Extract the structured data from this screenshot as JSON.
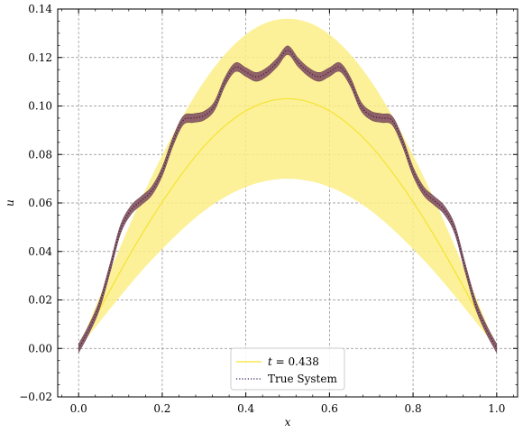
{
  "chart_data": {
    "type": "line",
    "title": "",
    "xlabel": "x",
    "ylabel": "u",
    "xlim": [
      -0.05,
      1.05
    ],
    "ylim": [
      -0.02,
      0.14
    ],
    "xticks": [
      "0.0",
      "0.2",
      "0.4",
      "0.6",
      "0.8",
      "1.0"
    ],
    "yticks": [
      "−0.02",
      "0.00",
      "0.02",
      "0.04",
      "0.06",
      "0.08",
      "0.10",
      "0.12",
      "0.14"
    ],
    "grid": true,
    "grid_style": "dashed",
    "legend_position": "bottom-center",
    "colors": {
      "prediction_line": "#f5e332",
      "prediction_band": "#fbee86",
      "true_line": "#3b1a4d",
      "true_band": "#8a5a65"
    },
    "series": [
      {
        "name": "t = 0.438",
        "legend_prefix": "t",
        "legend_value": "= 0.438",
        "style": "solid",
        "x": [
          0.0,
          0.05,
          0.1,
          0.15,
          0.2,
          0.25,
          0.3,
          0.35,
          0.4,
          0.45,
          0.5,
          0.55,
          0.6,
          0.65,
          0.7,
          0.75,
          0.8,
          0.85,
          0.9,
          0.95,
          1.0
        ],
        "y": [
          0.0,
          0.016,
          0.0318,
          0.0467,
          0.0604,
          0.0727,
          0.0834,
          0.0918,
          0.098,
          0.1017,
          0.103,
          0.1017,
          0.098,
          0.0918,
          0.0834,
          0.0727,
          0.0604,
          0.0467,
          0.0318,
          0.016,
          0.0
        ],
        "band_lower": [
          0.0,
          0.0109,
          0.0216,
          0.0318,
          0.041,
          0.0494,
          0.0567,
          0.0624,
          0.0666,
          0.0691,
          0.07,
          0.0691,
          0.0666,
          0.0624,
          0.0567,
          0.0494,
          0.041,
          0.0318,
          0.0216,
          0.0109,
          0.0
        ],
        "band_upper": [
          0.0,
          0.0212,
          0.042,
          0.0617,
          0.0797,
          0.096,
          0.1101,
          0.1213,
          0.1295,
          0.1344,
          0.136,
          0.1344,
          0.1295,
          0.1213,
          0.1101,
          0.096,
          0.0797,
          0.0617,
          0.042,
          0.0212,
          0.0
        ]
      },
      {
        "name": "True System",
        "style": "dotted",
        "x": [
          0.0,
          0.025,
          0.05,
          0.075,
          0.1,
          0.125,
          0.15,
          0.175,
          0.2,
          0.225,
          0.25,
          0.275,
          0.3,
          0.325,
          0.35,
          0.375,
          0.4,
          0.425,
          0.45,
          0.475,
          0.5,
          0.525,
          0.55,
          0.575,
          0.6,
          0.625,
          0.65,
          0.675,
          0.7,
          0.725,
          0.75,
          0.775,
          0.8,
          0.825,
          0.85,
          0.875,
          0.9,
          0.925,
          0.95,
          0.975,
          1.0
        ],
        "y": [
          0.0,
          0.008,
          0.018,
          0.033,
          0.049,
          0.057,
          0.061,
          0.065,
          0.073,
          0.085,
          0.094,
          0.095,
          0.096,
          0.1,
          0.11,
          0.116,
          0.114,
          0.112,
          0.114,
          0.118,
          0.123,
          0.118,
          0.114,
          0.112,
          0.114,
          0.116,
          0.11,
          0.1,
          0.096,
          0.095,
          0.094,
          0.085,
          0.073,
          0.065,
          0.061,
          0.057,
          0.049,
          0.033,
          0.018,
          0.008,
          0.0
        ],
        "band_halfwidth": 0.0018
      }
    ]
  }
}
